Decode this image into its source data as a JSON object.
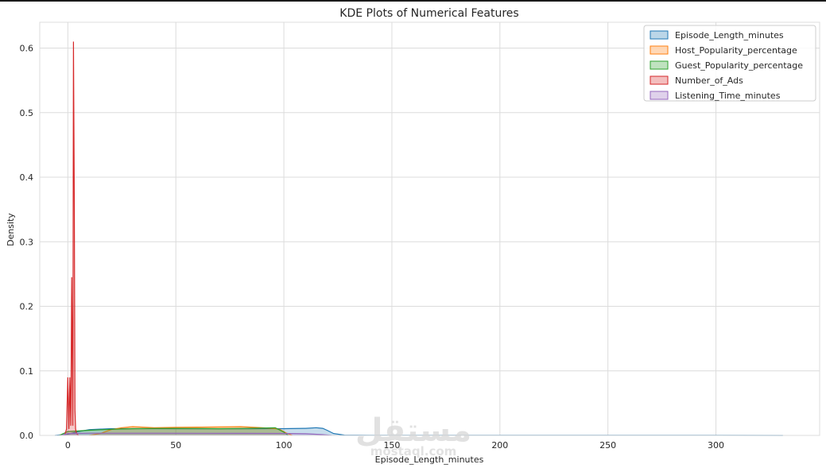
{
  "chart_data": {
    "type": "area",
    "title": "KDE Plots of Numerical Features",
    "xlabel": "Episode_Length_minutes",
    "ylabel": "Density",
    "xlim": [
      -13,
      348
    ],
    "ylim": [
      0,
      0.64
    ],
    "xticks": [
      0,
      50,
      100,
      150,
      200,
      250,
      300
    ],
    "yticks": [
      0.0,
      0.1,
      0.2,
      0.3,
      0.4,
      0.5,
      0.6
    ],
    "grid": true,
    "legend_position": "top-right",
    "series": [
      {
        "name": "Episode_Length_minutes",
        "color": "#1f77b4",
        "x": [
          -6,
          0,
          5,
          10,
          20,
          40,
          60,
          80,
          100,
          110,
          115,
          118,
          120,
          123,
          128,
          140,
          200,
          250,
          300,
          331
        ],
        "y": [
          0,
          0.002,
          0.006,
          0.009,
          0.0105,
          0.0105,
          0.0103,
          0.0103,
          0.0105,
          0.011,
          0.012,
          0.011,
          0.008,
          0.003,
          0.0005,
          0.0002,
          0.0001,
          0.0001,
          0.0001,
          0
        ]
      },
      {
        "name": "Host_Popularity_percentage",
        "color": "#ff7f0e",
        "x": [
          10,
          15,
          20,
          25,
          30,
          40,
          50,
          60,
          70,
          80,
          90,
          95,
          98,
          101,
          104
        ],
        "y": [
          0,
          0.003,
          0.009,
          0.012,
          0.0135,
          0.012,
          0.0125,
          0.0128,
          0.013,
          0.0135,
          0.012,
          0.011,
          0.0095,
          0.004,
          0
        ]
      },
      {
        "name": "Guest_Popularity_percentage",
        "color": "#2ca02c",
        "x": [
          -4,
          0,
          10,
          20,
          30,
          40,
          50,
          60,
          70,
          80,
          90,
          96,
          100,
          102
        ],
        "y": [
          0,
          0.006,
          0.008,
          0.0095,
          0.0105,
          0.0108,
          0.011,
          0.0108,
          0.0105,
          0.0108,
          0.0115,
          0.012,
          0.005,
          0
        ]
      },
      {
        "name": "Number_of_Ads",
        "color": "#d62728",
        "x": [
          -1.5,
          -0.6,
          0,
          0.5,
          0.9,
          1.4,
          1.8,
          2.3,
          2.6,
          3.0,
          3.3,
          3.6,
          3.9,
          4.3,
          5
        ],
        "y": [
          0,
          0.01,
          0.09,
          0.01,
          0.09,
          0.015,
          0.245,
          0.015,
          0.61,
          0.35,
          0.04,
          0.01,
          0.005,
          0.002,
          0
        ]
      },
      {
        "name": "Listening_Time_minutes",
        "color": "#9467bd",
        "x": [
          -3,
          0,
          10,
          20,
          40,
          60,
          80,
          100,
          110,
          118,
          122
        ],
        "y": [
          0,
          0.003,
          0.0035,
          0.0035,
          0.0034,
          0.0033,
          0.0032,
          0.0031,
          0.0026,
          0.0012,
          0
        ]
      }
    ]
  },
  "watermark": {
    "arabic": "مستقل",
    "latin": "mostaql.com"
  }
}
